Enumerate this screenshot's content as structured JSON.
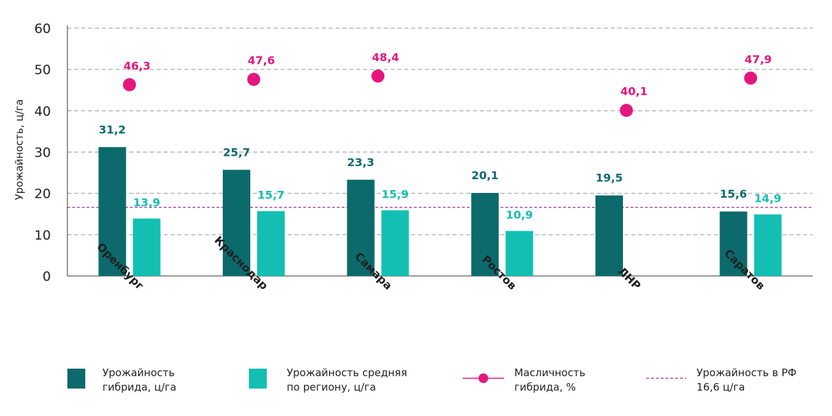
{
  "colors": {
    "hybrid_bar": "#0c6a6c",
    "region_bar": "#13bfb2",
    "oil_point": "#e5177e",
    "rf_line": "#a4268a",
    "grid": "#9a9a9a",
    "axis": "#333333"
  },
  "chart_data": {
    "type": "bar",
    "categories": [
      "Оренбург",
      "Краснодар",
      "Самара",
      "Ростов",
      "ЛНР",
      "Саратов"
    ],
    "ylabel": "Урожайность, ц/га",
    "ylim": [
      0,
      60
    ],
    "yticks": [
      "0",
      "10",
      "20",
      "30",
      "40",
      "50",
      "60"
    ],
    "grid": true,
    "legend_position": "bottom",
    "series": [
      {
        "name": "Урожайность гибрида, ц/га",
        "kind": "bar",
        "values": [
          31.2,
          25.7,
          23.3,
          20.1,
          19.5,
          15.6
        ],
        "labels": [
          "31,2",
          "25,7",
          "23,3",
          "20,1",
          "19,5",
          "15,6"
        ]
      },
      {
        "name": "Урожайность средняя по региону, ц/га",
        "kind": "bar",
        "values": [
          13.9,
          15.7,
          15.9,
          10.9,
          null,
          14.9
        ],
        "labels": [
          "13,9",
          "15,7",
          "15,9",
          "10,9",
          "",
          "14,9"
        ]
      },
      {
        "name": "Масличность гибрида, %",
        "kind": "scatter",
        "values": [
          46.3,
          47.6,
          48.4,
          null,
          40.1,
          47.9
        ],
        "labels": [
          "46,3",
          "47,6",
          "48,4",
          "",
          "40,1",
          "47,9"
        ]
      }
    ],
    "reference_line": {
      "name": "Урожайность в РФ 16,6 ц/га",
      "value": 16.6
    }
  },
  "legend": [
    {
      "line1": "Урожайность",
      "line2": "гибрида, ц/га"
    },
    {
      "line1": "Урожайность средняя",
      "line2": "по региону, ц/га"
    },
    {
      "line1": "Масличность",
      "line2": "гибрида, %"
    },
    {
      "line1": "Урожайность в РФ",
      "line2": "16,6 ц/га"
    }
  ]
}
